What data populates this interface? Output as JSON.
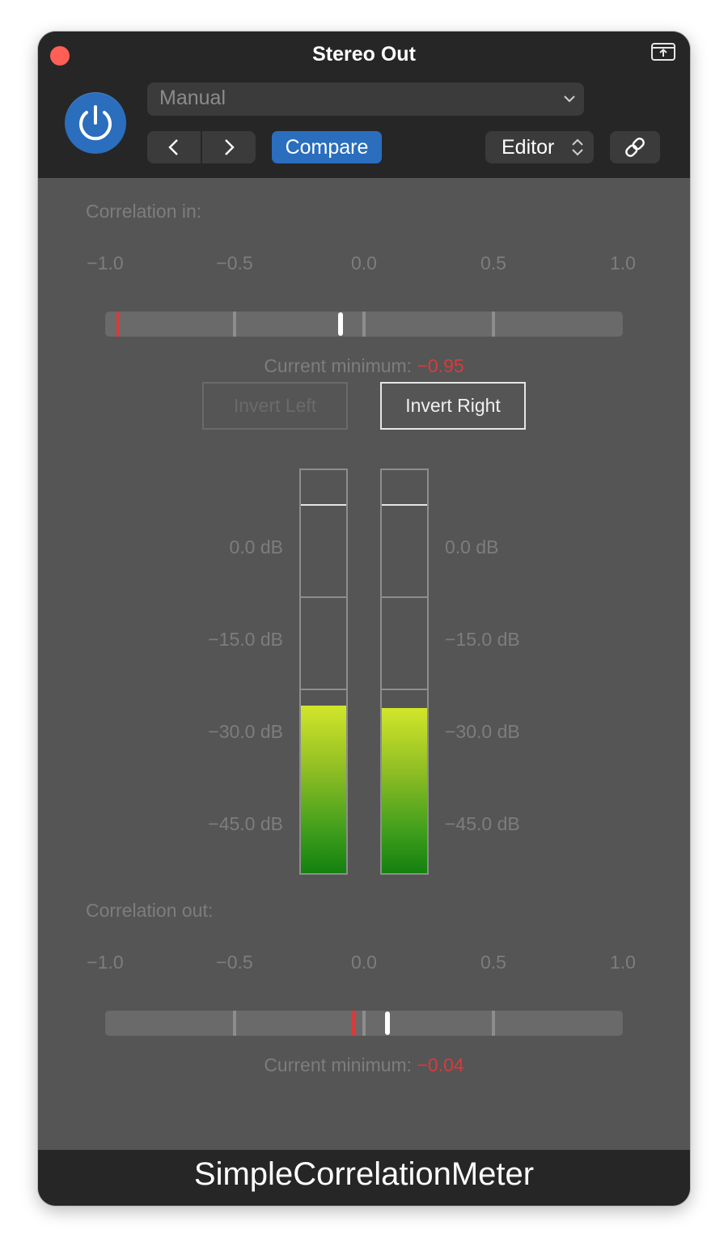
{
  "window": {
    "title": "Stereo Out",
    "footer_title": "SimpleCorrelationMeter"
  },
  "toolbar": {
    "preset_value": "Manual",
    "compare_label": "Compare",
    "editor_label": "Editor",
    "accent_color": "#2a6ebd"
  },
  "correlation_in": {
    "label": "Correlation in:",
    "ticks": [
      "−1.0",
      "−0.5",
      "0.0",
      "0.5",
      "1.0"
    ],
    "current_value": -0.09,
    "minimum_value": -0.95,
    "minimum_label": "Current minimum:",
    "minimum_text": "−0.95"
  },
  "invert": {
    "left_label": "Invert Left",
    "right_label": "Invert Right"
  },
  "level_meter": {
    "scale_labels": [
      "0.0 dB",
      "−15.0 dB",
      "−30.0 dB",
      "−45.0 dB"
    ],
    "left_level_db": -32.8,
    "right_level_db": -33.1,
    "fill_colors": [
      "#d2e62a",
      "#14800f"
    ]
  },
  "correlation_out": {
    "label": "Correlation out:",
    "ticks": [
      "−1.0",
      "−0.5",
      "0.0",
      "0.5",
      "1.0"
    ],
    "current_value": 0.09,
    "minimum_value": -0.04,
    "minimum_label": "Current minimum:",
    "minimum_text": "−0.04"
  },
  "colors": {
    "minimum_red": "#d83b3b",
    "panel_bg": "#555555"
  }
}
